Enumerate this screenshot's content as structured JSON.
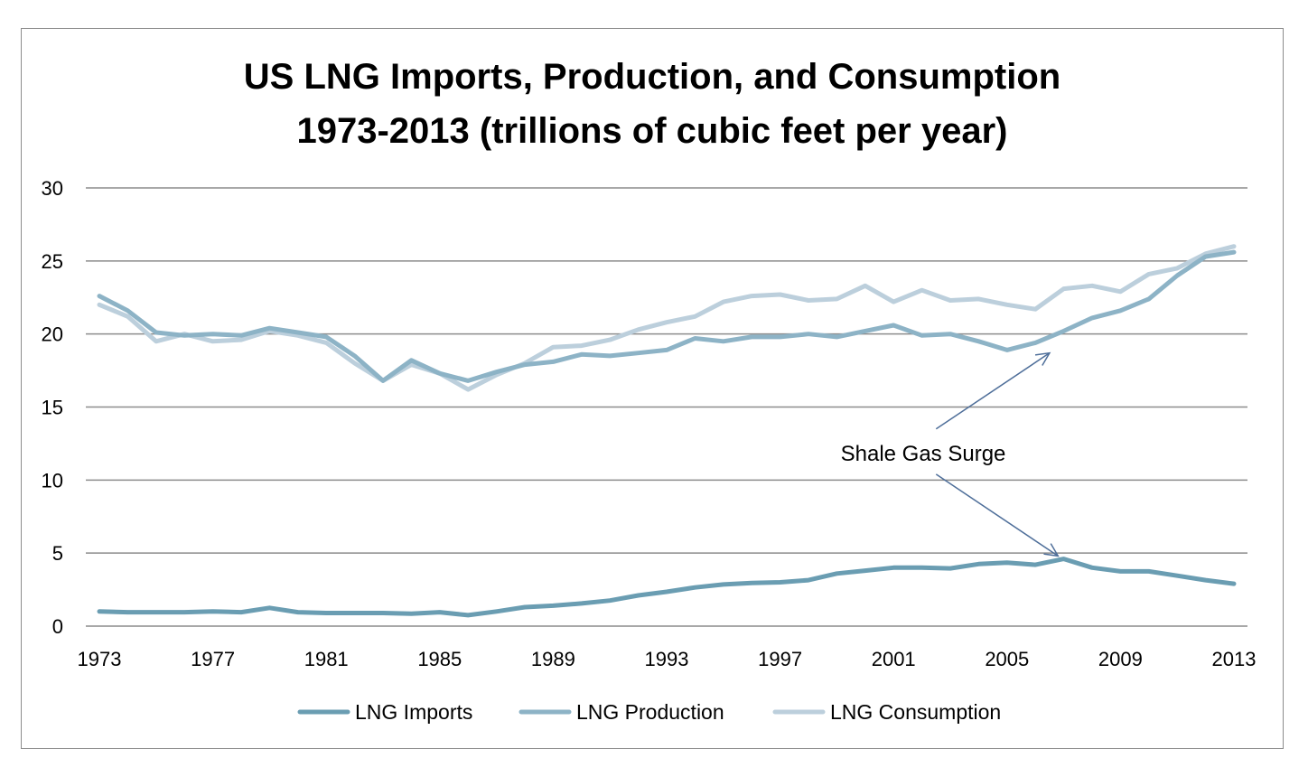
{
  "chart_data": {
    "type": "line",
    "title_lines": [
      "US LNG Imports, Production, and Consumption",
      "1973-2013 (trillions of cubic feet per year)"
    ],
    "xlabel": "",
    "ylabel": "",
    "x_range": [
      1973,
      2013
    ],
    "ylim": [
      0,
      30
    ],
    "y_ticks": [
      0,
      5,
      10,
      15,
      20,
      25,
      30
    ],
    "x_ticks": [
      1973,
      1977,
      1981,
      1985,
      1989,
      1993,
      1997,
      2001,
      2005,
      2009,
      2013
    ],
    "grid": "horizontal",
    "legend_position": "bottom",
    "x": [
      1973,
      1974,
      1975,
      1976,
      1977,
      1978,
      1979,
      1980,
      1981,
      1982,
      1983,
      1984,
      1985,
      1986,
      1987,
      1988,
      1989,
      1990,
      1991,
      1992,
      1993,
      1994,
      1995,
      1996,
      1997,
      1998,
      1999,
      2000,
      2001,
      2002,
      2003,
      2004,
      2005,
      2006,
      2007,
      2008,
      2009,
      2010,
      2011,
      2012,
      2013
    ],
    "series": [
      {
        "name": "LNG Imports",
        "color": "#6a9db2",
        "values": [
          1.0,
          0.95,
          0.95,
          0.95,
          1.0,
          0.95,
          1.25,
          0.95,
          0.9,
          0.9,
          0.9,
          0.85,
          0.95,
          0.75,
          1.0,
          1.3,
          1.4,
          1.55,
          1.75,
          2.1,
          2.35,
          2.65,
          2.85,
          2.95,
          3.0,
          3.15,
          3.6,
          3.8,
          4.0,
          4.0,
          3.95,
          4.25,
          4.35,
          4.2,
          4.6,
          4.0,
          3.75,
          3.75,
          3.45,
          3.15,
          2.9
        ]
      },
      {
        "name": "LNG Production",
        "color": "#8db3c6",
        "values": [
          22.6,
          21.6,
          20.1,
          19.9,
          20.0,
          19.9,
          20.4,
          20.1,
          19.8,
          18.5,
          16.8,
          18.2,
          17.3,
          16.8,
          17.4,
          17.9,
          18.1,
          18.6,
          18.5,
          18.7,
          18.9,
          19.7,
          19.5,
          19.8,
          19.8,
          20.0,
          19.8,
          20.2,
          20.6,
          19.9,
          20.0,
          19.5,
          18.9,
          19.4,
          20.2,
          21.1,
          21.6,
          22.4,
          24.0,
          25.3,
          25.6
        ]
      },
      {
        "name": "LNG Consumption",
        "color": "#bccfdc",
        "values": [
          22.0,
          21.2,
          19.5,
          20.0,
          19.5,
          19.6,
          20.2,
          19.9,
          19.4,
          18.0,
          16.8,
          17.9,
          17.3,
          16.2,
          17.2,
          18.0,
          19.1,
          19.2,
          19.6,
          20.3,
          20.8,
          21.2,
          22.2,
          22.6,
          22.7,
          22.3,
          22.4,
          23.3,
          22.2,
          23.0,
          22.3,
          22.4,
          22.0,
          21.7,
          23.1,
          23.3,
          22.9,
          24.1,
          24.5,
          25.5,
          26.0
        ]
      }
    ],
    "annotation": {
      "text": "Shale Gas Surge",
      "color": "#4f6f9a",
      "arrows": [
        {
          "from": [
            2002.5,
            13.5
          ],
          "to": [
            2006.5,
            18.7
          ]
        },
        {
          "from": [
            2002.5,
            10.4
          ],
          "to": [
            2006.8,
            4.8
          ]
        }
      ]
    }
  }
}
